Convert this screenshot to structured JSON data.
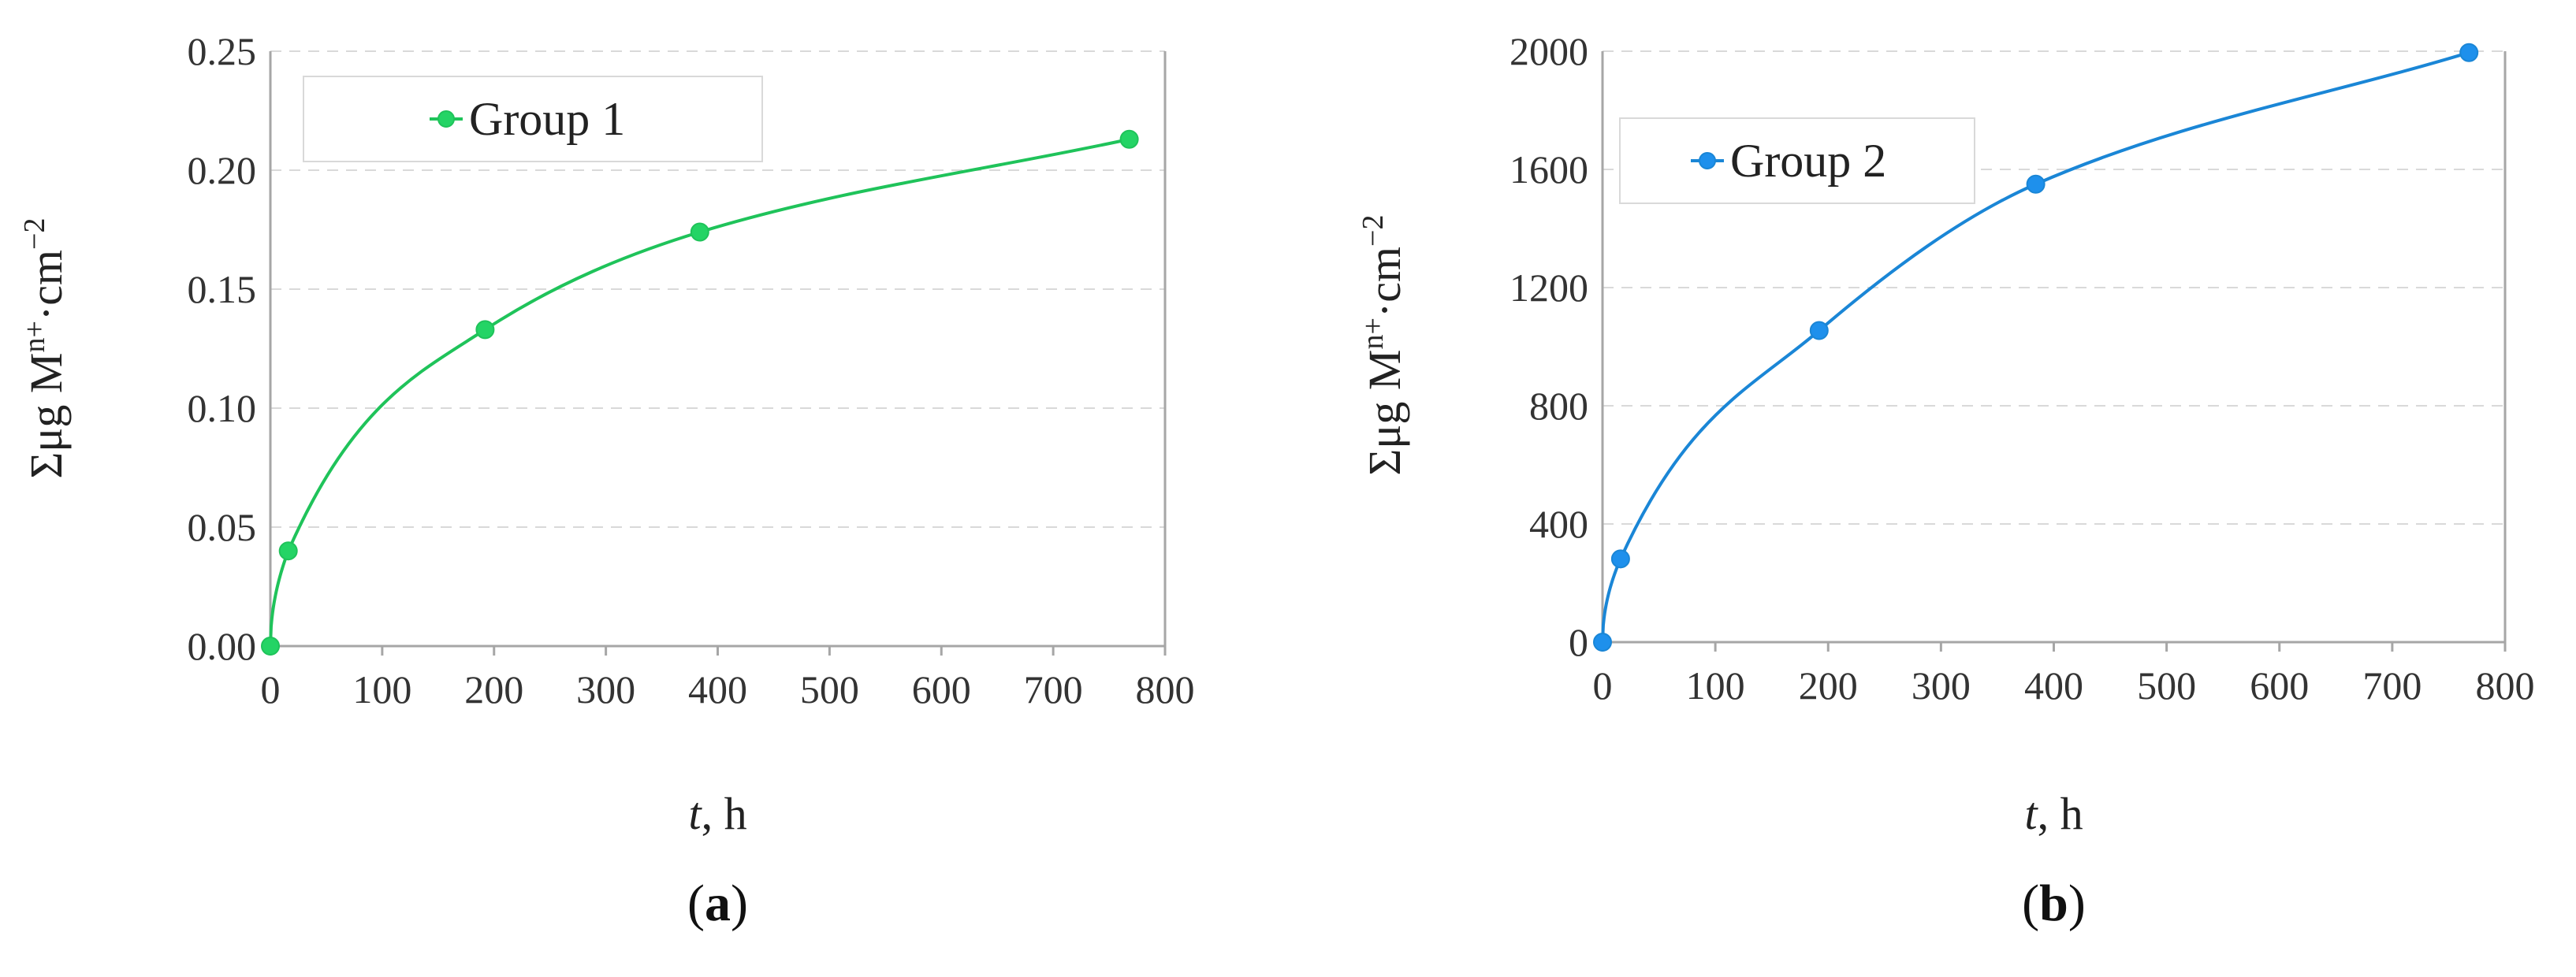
{
  "chart_data": [
    {
      "type": "line",
      "panel_label": "a",
      "xlabel_var": "t",
      "xlabel_unit": ", h",
      "ylabel_base": "Σμg M",
      "ylabel_sup1": "n+",
      "ylabel_mid": "·cm",
      "ylabel_sup2": "−2",
      "xlim": [
        0,
        800
      ],
      "ylim": [
        0,
        0.25
      ],
      "x_ticks": [
        "0",
        "100",
        "200",
        "300",
        "400",
        "500",
        "600",
        "700",
        "800"
      ],
      "y_ticks": [
        "0.00",
        "0.05",
        "0.10",
        "0.15",
        "0.20",
        "0.25"
      ],
      "grid": true,
      "legend_position": "top-left",
      "series": [
        {
          "name": "Group 1",
          "color": "#1fc35a",
          "marker_fill": "#24d465",
          "x": [
            0,
            16,
            192,
            384,
            768
          ],
          "y": [
            0.0,
            0.04,
            0.133,
            0.174,
            0.213
          ]
        }
      ]
    },
    {
      "type": "line",
      "panel_label": "b",
      "xlabel_var": "t",
      "xlabel_unit": ", h",
      "ylabel_base": "Σμg M",
      "ylabel_sup1": "n+",
      "ylabel_mid": "·cm",
      "ylabel_sup2": "−2",
      "xlim": [
        0,
        800
      ],
      "ylim": [
        0,
        2200
      ],
      "x_ticks": [
        "0",
        "100",
        "200",
        "300",
        "400",
        "500",
        "600",
        "700",
        "800"
      ],
      "y_ticks": [
        "0",
        "400",
        "800",
        "1200",
        "1600",
        "2000"
      ],
      "grid": true,
      "legend_position": "top-left",
      "series": [
        {
          "name": "Group 2",
          "color": "#1a86d6",
          "marker_fill": "#1e90ec",
          "x": [
            0,
            16,
            192,
            384,
            768
          ],
          "y": [
            0,
            310,
            1160,
            1705,
            2195
          ]
        }
      ]
    }
  ]
}
